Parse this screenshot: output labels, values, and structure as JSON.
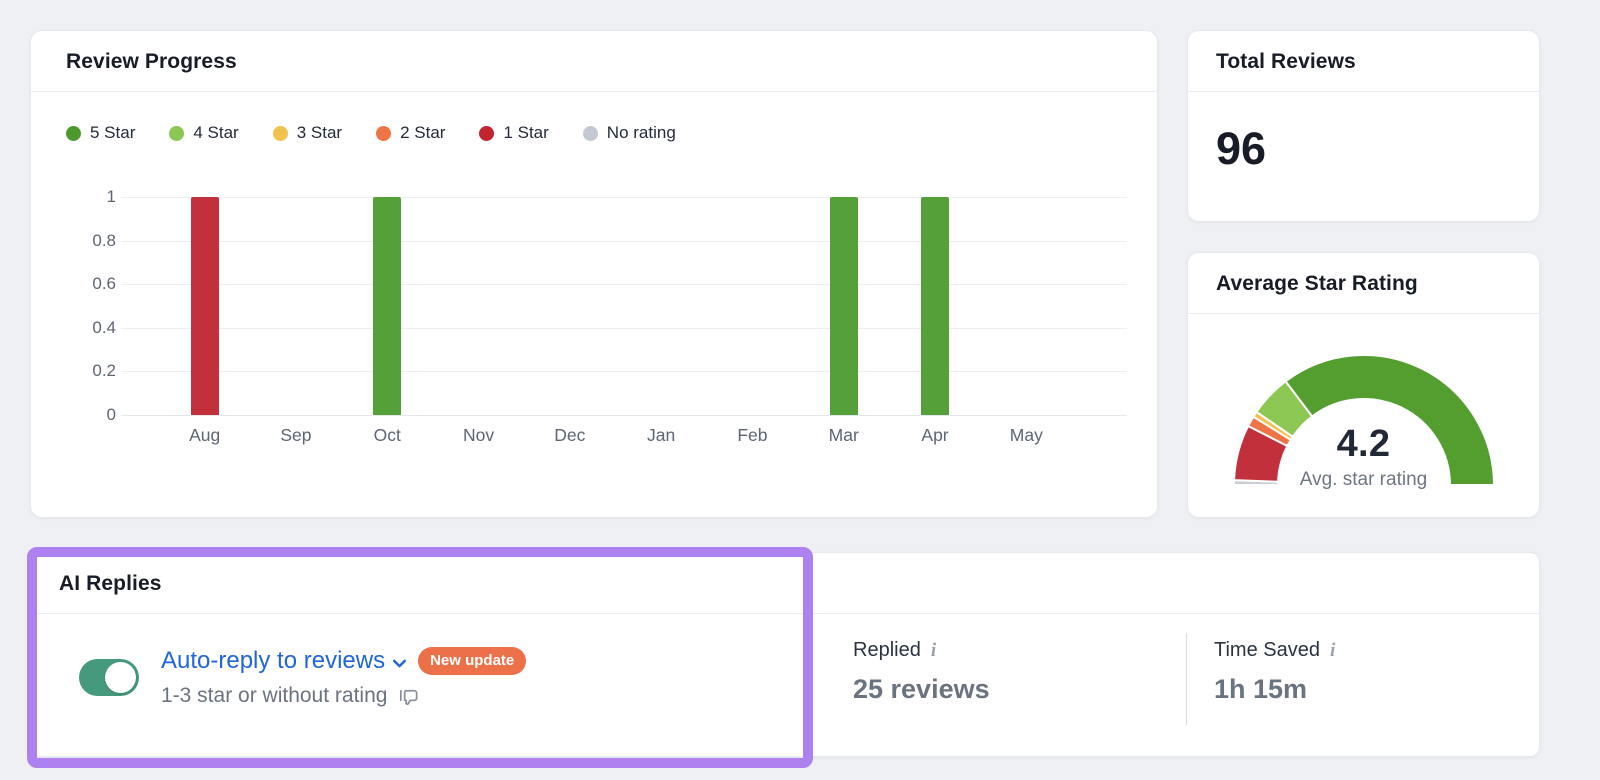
{
  "review_progress": {
    "title": "Review Progress",
    "legend": [
      {
        "key": "5-star",
        "label": "5 Star",
        "color": "#4c9a2e"
      },
      {
        "key": "4-star",
        "label": "4 Star",
        "color": "#8cc653"
      },
      {
        "key": "3-star",
        "label": "3 Star",
        "color": "#f0c350"
      },
      {
        "key": "2-star",
        "label": "2 Star",
        "color": "#ee7345"
      },
      {
        "key": "1-star",
        "label": "1 Star",
        "color": "#c2232f"
      },
      {
        "key": "no-rating",
        "label": "No rating",
        "color": "#c3c8d1"
      }
    ]
  },
  "chart_data": [
    {
      "type": "bar",
      "title": "Review Progress",
      "categories": [
        "Aug",
        "Sep",
        "Oct",
        "Nov",
        "Dec",
        "Jan",
        "Feb",
        "Mar",
        "Apr",
        "May"
      ],
      "series": [
        {
          "name": "1 Star",
          "color": "#c2303c",
          "values": [
            1,
            0,
            0,
            0,
            0,
            0,
            0,
            0,
            0,
            0
          ]
        },
        {
          "name": "5 Star",
          "color": "#55a038",
          "values": [
            0,
            0,
            1,
            0,
            0,
            0,
            0,
            1,
            1,
            0
          ]
        }
      ],
      "yticks": [
        1,
        0.8,
        0.6,
        0.4,
        0.2,
        0
      ],
      "ylim": [
        0,
        1
      ],
      "grid": true,
      "legend_position": "top",
      "legend_entries": [
        "5 Star",
        "4 Star",
        "3 Star",
        "2 Star",
        "1 Star",
        "No rating"
      ]
    },
    {
      "type": "gauge",
      "title": "Average Star Rating",
      "value": 4.2,
      "value_label": "4.2",
      "caption": "Avg. star rating",
      "range": [
        0,
        5
      ],
      "segments": [
        {
          "name": "No rating",
          "fraction": 0.012,
          "color": "#c9ced6"
        },
        {
          "name": "1 Star",
          "fraction": 0.138,
          "color": "#c2303c"
        },
        {
          "name": "2 Star",
          "fraction": 0.026,
          "color": "#ee7345"
        },
        {
          "name": "3 Star",
          "fraction": 0.014,
          "color": "#f0c350"
        },
        {
          "name": "4 Star",
          "fraction": 0.104,
          "color": "#8cc653"
        },
        {
          "name": "5 Star",
          "fraction": 0.706,
          "color": "#539e2f"
        }
      ]
    }
  ],
  "total_reviews": {
    "title": "Total Reviews",
    "value": "96"
  },
  "average_star_rating": {
    "title": "Average Star Rating",
    "value": "4.2",
    "caption": "Avg. star rating"
  },
  "ai_replies": {
    "title": "AI Replies",
    "toggle_on": true,
    "link_label": "Auto-reply to reviews",
    "badge": "New update",
    "subtitle": "1-3 star or without rating",
    "stats": [
      {
        "label": "Replied",
        "value": "25 reviews"
      },
      {
        "label": "Time Saved",
        "value": "1h 15m"
      }
    ]
  },
  "highlight_color": "#ad82f0"
}
